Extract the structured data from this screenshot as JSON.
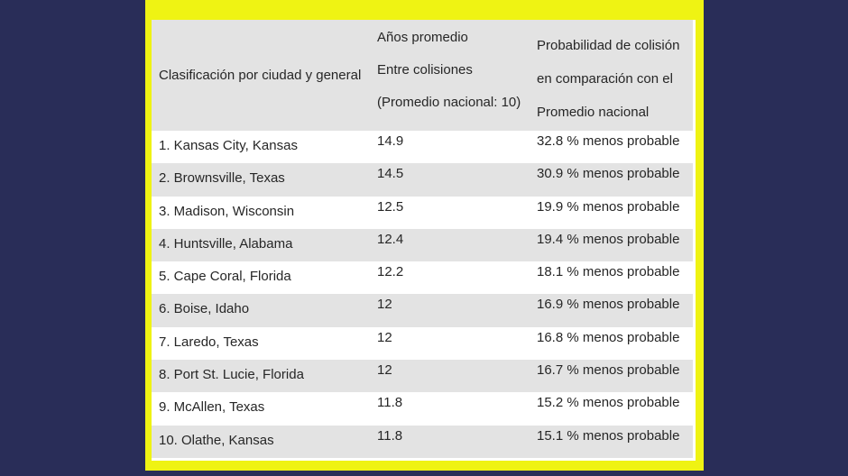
{
  "colors": {
    "background_navy": "#292d58",
    "frame_yellow": "#eff313",
    "row_stripe_gray": "#e3e3e3",
    "row_white": "#ffffff",
    "text": "#262626"
  },
  "table": {
    "header": {
      "col1": "Clasificación por ciudad y general",
      "col2_lines": [
        "Años promedio",
        "Entre colisiones",
        "(Promedio nacional: 10)"
      ],
      "col3_lines": [
        "Probabilidad de colisión",
        "en comparación con el",
        "Promedio nacional"
      ]
    },
    "rows": [
      {
        "city": "1. Kansas City, Kansas",
        "years": "14.9",
        "probability": "32.8 % menos probable"
      },
      {
        "city": "2. Brownsville, Texas",
        "years": "14.5",
        "probability": "30.9 % menos probable"
      },
      {
        "city": "3. Madison, Wisconsin",
        "years": "12.5",
        "probability": "19.9 % menos probable"
      },
      {
        "city": "4. Huntsville, Alabama",
        "years": "12.4",
        "probability": "19.4 % menos probable"
      },
      {
        "city": "5. Cape Coral, Florida",
        "years": "12.2",
        "probability": "18.1 % menos probable"
      },
      {
        "city": "6. Boise, Idaho",
        "years": "12",
        "probability": "16.9 % menos probable"
      },
      {
        "city": "7. Laredo, Texas",
        "years": "12",
        "probability": "16.8 % menos probable"
      },
      {
        "city": "8. Port St. Lucie, Florida",
        "years": "12",
        "probability": "16.7 % menos probable"
      },
      {
        "city": "9. McAllen, Texas",
        "years": "11.8",
        "probability": "15.2 % menos probable"
      },
      {
        "city": "10. Olathe, Kansas",
        "years": "11.8",
        "probability": "15.1 % menos probable"
      }
    ]
  },
  "chart_data": {
    "type": "table",
    "title": "",
    "columns": [
      "Clasificación por ciudad y general",
      "Años promedio Entre colisiones (Promedio nacional: 10)",
      "Probabilidad de colisión en comparación con el Promedio nacional"
    ],
    "national_average_years": 10,
    "rows": [
      [
        "1. Kansas City, Kansas",
        14.9,
        "32.8 % menos probable"
      ],
      [
        "2. Brownsville, Texas",
        14.5,
        "30.9 % menos probable"
      ],
      [
        "3. Madison, Wisconsin",
        12.5,
        "19.9 % menos probable"
      ],
      [
        "4. Huntsville, Alabama",
        12.4,
        "19.4 % menos probable"
      ],
      [
        "5. Cape Coral, Florida",
        12.2,
        "18.1 % menos probable"
      ],
      [
        "6. Boise, Idaho",
        12,
        "16.9 % menos probable"
      ],
      [
        "7. Laredo, Texas",
        12,
        "16.8 % menos probable"
      ],
      [
        "8. Port St. Lucie, Florida",
        12,
        "16.7 % menos probable"
      ],
      [
        "9. McAllen, Texas",
        11.8,
        "15.2 % menos probable"
      ],
      [
        "10. Olathe, Kansas",
        11.8,
        "15.1 % menos probable"
      ]
    ]
  }
}
